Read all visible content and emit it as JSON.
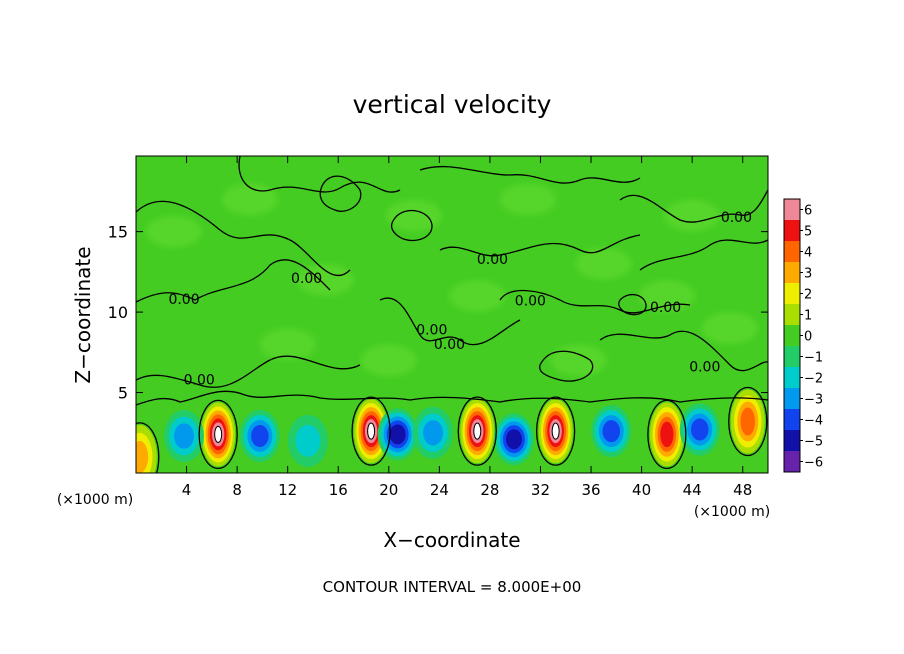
{
  "chart_data": {
    "type": "heatmap",
    "title": "vertical velocity",
    "xlabel": "X−coordinate",
    "ylabel": "Z−coordinate",
    "x_unit_label": "(×1000 m)",
    "y_unit_label": "(×1000 m)",
    "xlim": [
      0,
      50
    ],
    "ylim": [
      0,
      19.7
    ],
    "x_ticks": [
      4,
      8,
      12,
      16,
      20,
      24,
      28,
      32,
      36,
      40,
      44,
      48
    ],
    "y_ticks": [
      5,
      10,
      15
    ],
    "colorbar": {
      "ticks": [
        "6",
        "5",
        "4",
        "3",
        "2",
        "1",
        "0",
        "−1",
        "−2",
        "−3",
        "−4",
        "−5",
        "−6"
      ],
      "colors": [
        "#ee8899",
        "#ee1111",
        "#ff6600",
        "#ffaa00",
        "#eeee00",
        "#aadd00",
        "#44cc22",
        "#22cc66",
        "#00cccc",
        "#0099ee",
        "#1144ee",
        "#1111aa",
        "#6622aa"
      ]
    },
    "contour_label": "0.00",
    "footer": "CONTOUR INTERVAL = 8.000E+00",
    "updraft_cores": [
      {
        "x": 6.5,
        "z": 2.4,
        "w": 6
      },
      {
        "x": 18.6,
        "z": 2.6,
        "w": 6
      },
      {
        "x": 27.0,
        "z": 2.6,
        "w": 6
      },
      {
        "x": 33.2,
        "z": 2.6,
        "w": 6
      },
      {
        "x": 42.0,
        "z": 2.4,
        "w": 5
      },
      {
        "x": 48.4,
        "z": 3.2,
        "w": 4
      },
      {
        "x": 0.3,
        "z": 1.0,
        "w": 3
      }
    ],
    "downdraft_cores": [
      {
        "x": 9.8,
        "z": 2.3,
        "w": -4
      },
      {
        "x": 20.7,
        "z": 2.4,
        "w": -5
      },
      {
        "x": 23.5,
        "z": 2.5,
        "w": -3
      },
      {
        "x": 29.9,
        "z": 2.1,
        "w": -5
      },
      {
        "x": 37.6,
        "z": 2.6,
        "w": -4
      },
      {
        "x": 44.6,
        "z": 2.7,
        "w": -4
      },
      {
        "x": 3.8,
        "z": 2.3,
        "w": -3
      },
      {
        "x": 13.6,
        "z": 2.0,
        "w": -2
      }
    ]
  }
}
